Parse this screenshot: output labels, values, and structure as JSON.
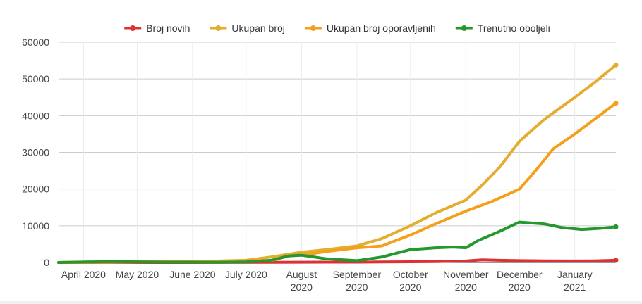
{
  "chart_data": {
    "type": "line",
    "title": "",
    "xlabel": "",
    "ylabel": "",
    "ylim": [
      0,
      60000
    ],
    "y_ticks": [
      0,
      10000,
      20000,
      30000,
      40000,
      50000,
      60000
    ],
    "y_tick_labels": [
      "0",
      "10000",
      "20000",
      "30000",
      "40000",
      "50000",
      "60000"
    ],
    "x_range": [
      "2020-03-18",
      "2021-01-24"
    ],
    "x_ticks": [
      {
        "date": "2020-04-01",
        "label": [
          "April 2020"
        ]
      },
      {
        "date": "2020-05-01",
        "label": [
          "May 2020"
        ]
      },
      {
        "date": "2020-06-01",
        "label": [
          "June 2020"
        ]
      },
      {
        "date": "2020-07-01",
        "label": [
          "July 2020"
        ]
      },
      {
        "date": "2020-08-01",
        "label": [
          "August",
          "2020"
        ]
      },
      {
        "date": "2020-09-01",
        "label": [
          "September",
          "2020"
        ]
      },
      {
        "date": "2020-10-01",
        "label": [
          "October",
          "2020"
        ]
      },
      {
        "date": "2020-11-01",
        "label": [
          "November",
          "2020"
        ]
      },
      {
        "date": "2020-12-01",
        "label": [
          "December",
          "2020"
        ]
      },
      {
        "date": "2021-01-01",
        "label": [
          "January",
          "2021"
        ]
      }
    ],
    "grid": true,
    "legend_position": "top",
    "series": [
      {
        "name": "Broj novih",
        "color": "#db3236",
        "points": [
          [
            "2020-03-18",
            0
          ],
          [
            "2020-04-15",
            20
          ],
          [
            "2020-05-15",
            5
          ],
          [
            "2020-06-15",
            10
          ],
          [
            "2020-07-15",
            40
          ],
          [
            "2020-08-01",
            80
          ],
          [
            "2020-08-15",
            90
          ],
          [
            "2020-09-01",
            100
          ],
          [
            "2020-09-15",
            150
          ],
          [
            "2020-10-01",
            200
          ],
          [
            "2020-10-15",
            250
          ],
          [
            "2020-11-01",
            400
          ],
          [
            "2020-11-10",
            700
          ],
          [
            "2020-11-20",
            600
          ],
          [
            "2020-12-01",
            500
          ],
          [
            "2020-12-15",
            450
          ],
          [
            "2021-01-01",
            400
          ],
          [
            "2021-01-12",
            450
          ],
          [
            "2021-01-24",
            600
          ]
        ]
      },
      {
        "name": "Ukupan broj",
        "color": "#e5ad2e",
        "points": [
          [
            "2020-03-18",
            0
          ],
          [
            "2020-04-15",
            200
          ],
          [
            "2020-05-15",
            300
          ],
          [
            "2020-06-15",
            400
          ],
          [
            "2020-07-01",
            600
          ],
          [
            "2020-07-15",
            1500
          ],
          [
            "2020-08-01",
            2800
          ],
          [
            "2020-08-15",
            3500
          ],
          [
            "2020-09-01",
            4500
          ],
          [
            "2020-09-15",
            6500
          ],
          [
            "2020-10-01",
            10000
          ],
          [
            "2020-10-15",
            13500
          ],
          [
            "2020-11-01",
            17000
          ],
          [
            "2020-11-10",
            21000
          ],
          [
            "2020-11-20",
            26000
          ],
          [
            "2020-12-01",
            33000
          ],
          [
            "2020-12-15",
            39000
          ],
          [
            "2021-01-01",
            45000
          ],
          [
            "2021-01-12",
            49000
          ],
          [
            "2021-01-24",
            53800
          ]
        ]
      },
      {
        "name": "Ukupan broj oporavljenih",
        "color": "#f5a01c",
        "points": [
          [
            "2020-03-18",
            0
          ],
          [
            "2020-04-15",
            100
          ],
          [
            "2020-05-15",
            250
          ],
          [
            "2020-06-15",
            350
          ],
          [
            "2020-07-15",
            500
          ],
          [
            "2020-07-25",
            1800
          ],
          [
            "2020-08-01",
            2000
          ],
          [
            "2020-08-15",
            3000
          ],
          [
            "2020-09-01",
            4000
          ],
          [
            "2020-09-15",
            4500
          ],
          [
            "2020-10-01",
            7500
          ],
          [
            "2020-10-15",
            10500
          ],
          [
            "2020-11-01",
            14000
          ],
          [
            "2020-11-15",
            16500
          ],
          [
            "2020-12-01",
            20000
          ],
          [
            "2020-12-10",
            25000
          ],
          [
            "2020-12-20",
            31000
          ],
          [
            "2021-01-01",
            35000
          ],
          [
            "2021-01-12",
            39000
          ],
          [
            "2021-01-24",
            43400
          ]
        ]
      },
      {
        "name": "Trenutno oboljeli",
        "color": "#23982d",
        "points": [
          [
            "2020-03-18",
            0
          ],
          [
            "2020-04-15",
            250
          ],
          [
            "2020-05-15",
            100
          ],
          [
            "2020-06-15",
            50
          ],
          [
            "2020-07-01",
            150
          ],
          [
            "2020-07-15",
            600
          ],
          [
            "2020-07-25",
            1800
          ],
          [
            "2020-08-01",
            2000
          ],
          [
            "2020-08-15",
            1000
          ],
          [
            "2020-09-01",
            500
          ],
          [
            "2020-09-15",
            1500
          ],
          [
            "2020-10-01",
            3500
          ],
          [
            "2020-10-15",
            4000
          ],
          [
            "2020-10-25",
            4200
          ],
          [
            "2020-11-01",
            4000
          ],
          [
            "2020-11-08",
            6000
          ],
          [
            "2020-11-20",
            8500
          ],
          [
            "2020-12-01",
            11000
          ],
          [
            "2020-12-15",
            10500
          ],
          [
            "2020-12-25",
            9500
          ],
          [
            "2021-01-05",
            9000
          ],
          [
            "2021-01-15",
            9300
          ],
          [
            "2021-01-24",
            9700
          ]
        ]
      }
    ]
  }
}
